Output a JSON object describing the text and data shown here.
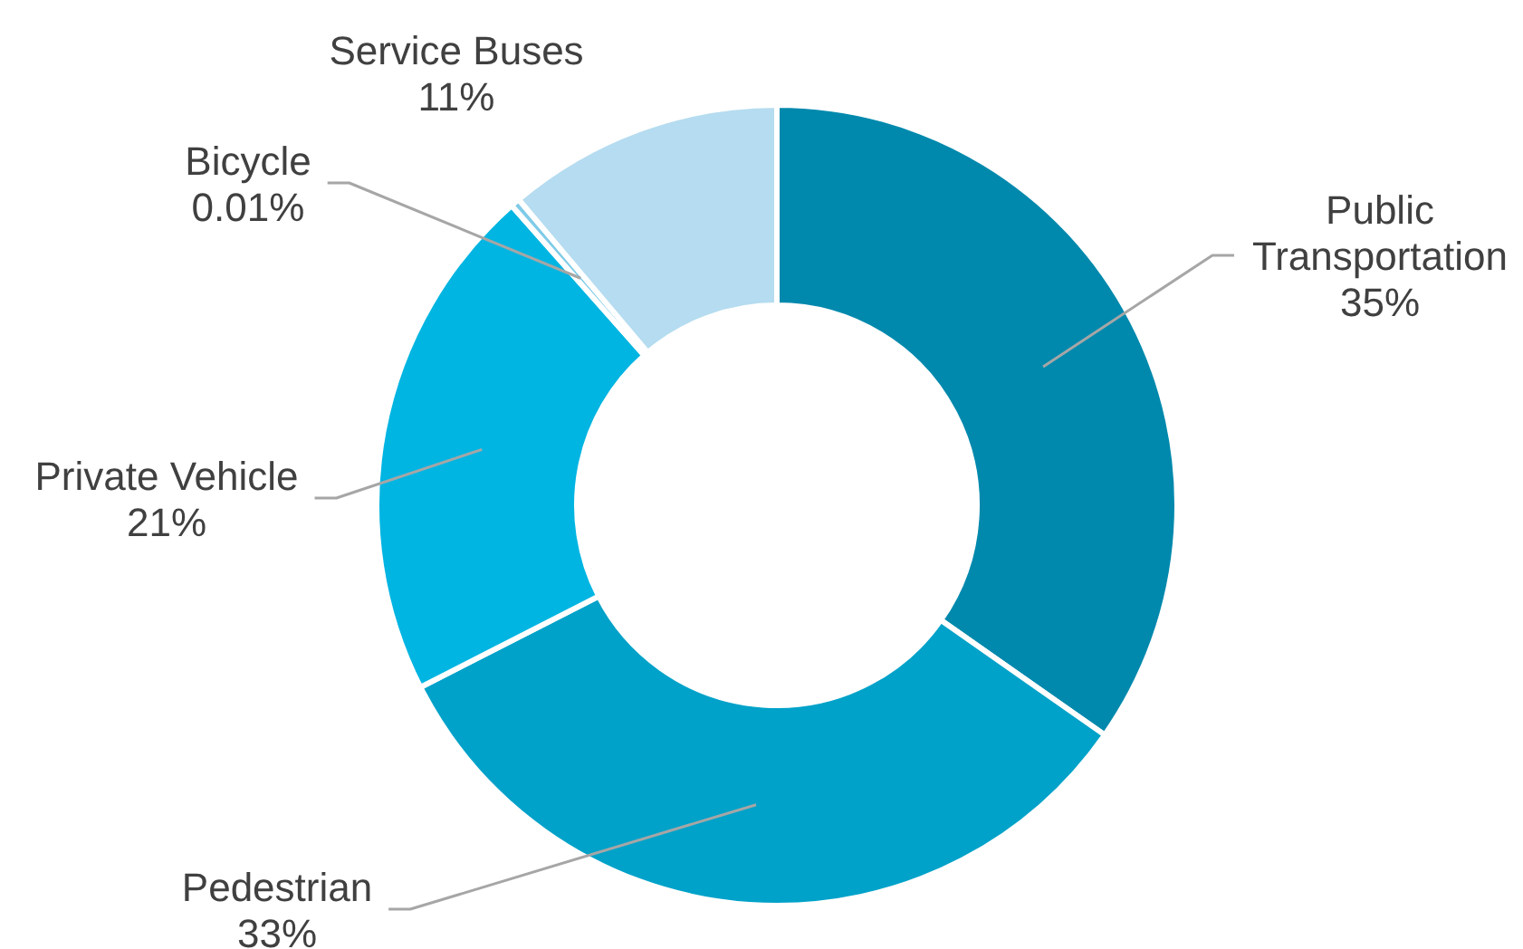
{
  "chart_data": {
    "type": "donut",
    "categories": [
      "Public Transportation",
      "Pedestrian",
      "Private Vehicle",
      "Bicycle",
      "Service Buses"
    ],
    "values": [
      35,
      33,
      21,
      0.01,
      11
    ],
    "value_labels": [
      "35%",
      "33%",
      "21%",
      "0.01%",
      "11%"
    ],
    "colors": [
      "#0089ad",
      "#00a2c9",
      "#00b5e2",
      "#7fcbe8",
      "#b5dcf0"
    ]
  }
}
